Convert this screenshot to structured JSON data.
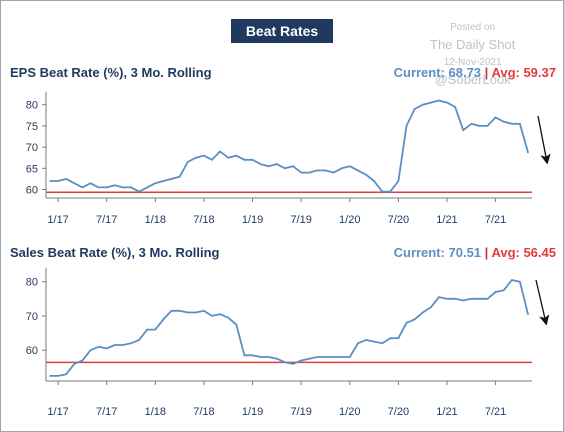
{
  "header": {
    "title": "Beat Rates"
  },
  "watermark": {
    "posted": "Posted on",
    "source": "The Daily Shot",
    "date": "12-Nov-2021",
    "handle": "@SoberLook"
  },
  "colors": {
    "line": "#5b8fc2",
    "average": "#e03c3c",
    "header_bg": "#1f3a5e",
    "arrow": "#111111"
  },
  "chart_data": [
    {
      "type": "line",
      "title": "EPS Beat Rate (%), 3 Mo. Rolling",
      "current_label": "Current: 68.73",
      "separator": "|",
      "avg_label": "Avg: 59.37",
      "average": 59.37,
      "ylim": [
        58,
        83
      ],
      "yticks": [
        "60",
        "65",
        "70",
        "75",
        "80"
      ],
      "xticks": [
        "1/17",
        "7/17",
        "1/18",
        "7/18",
        "1/19",
        "7/19",
        "1/20",
        "7/20",
        "1/21",
        "7/21"
      ],
      "x": [
        "2016-12",
        "2017-01",
        "2017-02",
        "2017-03",
        "2017-04",
        "2017-05",
        "2017-06",
        "2017-07",
        "2017-08",
        "2017-09",
        "2017-10",
        "2017-11",
        "2017-12",
        "2018-01",
        "2018-02",
        "2018-03",
        "2018-04",
        "2018-05",
        "2018-06",
        "2018-07",
        "2018-08",
        "2018-09",
        "2018-10",
        "2018-11",
        "2018-12",
        "2019-01",
        "2019-02",
        "2019-03",
        "2019-04",
        "2019-05",
        "2019-06",
        "2019-07",
        "2019-08",
        "2019-09",
        "2019-10",
        "2019-11",
        "2019-12",
        "2020-01",
        "2020-02",
        "2020-03",
        "2020-04",
        "2020-05",
        "2020-06",
        "2020-07",
        "2020-08",
        "2020-09",
        "2020-10",
        "2020-11",
        "2020-12",
        "2021-01",
        "2021-02",
        "2021-03",
        "2021-04",
        "2021-05",
        "2021-06",
        "2021-07",
        "2021-08",
        "2021-09",
        "2021-10",
        "2021-11"
      ],
      "values": [
        62,
        62,
        62.5,
        61.5,
        60.5,
        61.5,
        60.5,
        60.5,
        61,
        60.5,
        60.5,
        59.5,
        60.5,
        61.5,
        62,
        62.5,
        63,
        66.5,
        67.5,
        68,
        67,
        69,
        67.5,
        68,
        67,
        67,
        66,
        65.5,
        66,
        65,
        65.5,
        64,
        64,
        64.5,
        64.5,
        64,
        65,
        65.5,
        64.5,
        63.5,
        62,
        59.5,
        59.5,
        62,
        75,
        79,
        80,
        80.5,
        81,
        80.5,
        79.5,
        74,
        75.5,
        75,
        75,
        77,
        76,
        75.5,
        75.5,
        68.73
      ]
    },
    {
      "type": "line",
      "title": "Sales Beat Rate (%), 3 Mo. Rolling",
      "current_label": "Current: 70.51",
      "separator": "|",
      "avg_label": "Avg: 56.45",
      "average": 56.45,
      "ylim": [
        51,
        84
      ],
      "yticks": [
        "60",
        "70",
        "80"
      ],
      "xticks": [
        "1/17",
        "7/17",
        "1/18",
        "7/18",
        "1/19",
        "7/19",
        "1/20",
        "7/20",
        "1/21",
        "7/21"
      ],
      "x": [
        "2016-12",
        "2017-01",
        "2017-02",
        "2017-03",
        "2017-04",
        "2017-05",
        "2017-06",
        "2017-07",
        "2017-08",
        "2017-09",
        "2017-10",
        "2017-11",
        "2017-12",
        "2018-01",
        "2018-02",
        "2018-03",
        "2018-04",
        "2018-05",
        "2018-06",
        "2018-07",
        "2018-08",
        "2018-09",
        "2018-10",
        "2018-11",
        "2018-12",
        "2019-01",
        "2019-02",
        "2019-03",
        "2019-04",
        "2019-05",
        "2019-06",
        "2019-07",
        "2019-08",
        "2019-09",
        "2019-10",
        "2019-11",
        "2019-12",
        "2020-01",
        "2020-02",
        "2020-03",
        "2020-04",
        "2020-05",
        "2020-06",
        "2020-07",
        "2020-08",
        "2020-09",
        "2020-10",
        "2020-11",
        "2020-12",
        "2021-01",
        "2021-02",
        "2021-03",
        "2021-04",
        "2021-05",
        "2021-06",
        "2021-07",
        "2021-08",
        "2021-09",
        "2021-10",
        "2021-11"
      ],
      "values": [
        52.5,
        52.5,
        53,
        56,
        57,
        60,
        61,
        60.5,
        61.5,
        61.5,
        62,
        63,
        66,
        66,
        69,
        71.5,
        71.5,
        71,
        71,
        71.5,
        70,
        70.5,
        69.5,
        67.5,
        58.5,
        58.5,
        58,
        58,
        57.5,
        56.5,
        56,
        57,
        57.5,
        58,
        58,
        58,
        58,
        58,
        62,
        63,
        62.5,
        62,
        63.5,
        63.5,
        68,
        69,
        71,
        72.5,
        75.5,
        75,
        75,
        74.5,
        75,
        75,
        75,
        77,
        77.5,
        80.5,
        80,
        70.51
      ]
    }
  ]
}
